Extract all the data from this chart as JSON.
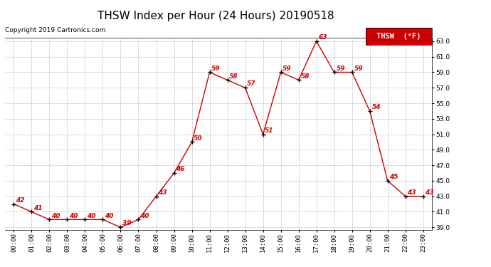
{
  "title": "THSW Index per Hour (24 Hours) 20190518",
  "copyright": "Copyright 2019 Cartronics.com",
  "legend_label": "THSW  (°F)",
  "hours": [
    0,
    1,
    2,
    3,
    4,
    5,
    6,
    7,
    8,
    9,
    10,
    11,
    12,
    13,
    14,
    15,
    16,
    17,
    18,
    19,
    20,
    21,
    22,
    23
  ],
  "values": [
    42,
    41,
    40,
    40,
    40,
    40,
    39,
    40,
    43,
    46,
    50,
    59,
    58,
    57,
    51,
    59,
    58,
    63,
    59,
    59,
    54,
    45,
    43,
    43
  ],
  "line_color": "#cc0000",
  "marker_color": "#000000",
  "label_color": "#cc0000",
  "bg_color": "#ffffff",
  "grid_color": "#bbbbbb",
  "ylim_min": 39.0,
  "ylim_max": 63.0,
  "yticks": [
    39.0,
    41.0,
    43.0,
    45.0,
    47.0,
    49.0,
    51.0,
    53.0,
    55.0,
    57.0,
    59.0,
    61.0,
    63.0
  ],
  "title_fontsize": 11,
  "copyright_fontsize": 6.5,
  "label_fontsize": 6.5,
  "tick_fontsize": 6.5,
  "legend_fontsize": 7.5
}
